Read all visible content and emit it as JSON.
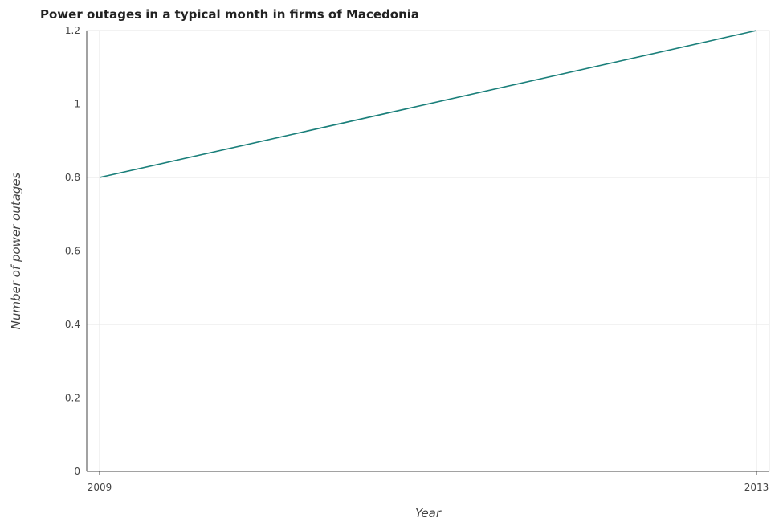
{
  "chart_data": {
    "type": "line",
    "title": "Power outages in a typical month in firms of Macedonia",
    "xlabel": "Year",
    "ylabel": "Number of power outages",
    "x": [
      "2009",
      "2013"
    ],
    "series": [
      {
        "values": [
          0.8,
          1.2
        ],
        "color": "#1a7f7a"
      }
    ],
    "ylim": [
      0,
      1.2
    ],
    "yticks": [
      "0",
      "0.2",
      "0.4",
      "0.6",
      "0.8",
      "1",
      "1.2"
    ],
    "grid": true
  }
}
